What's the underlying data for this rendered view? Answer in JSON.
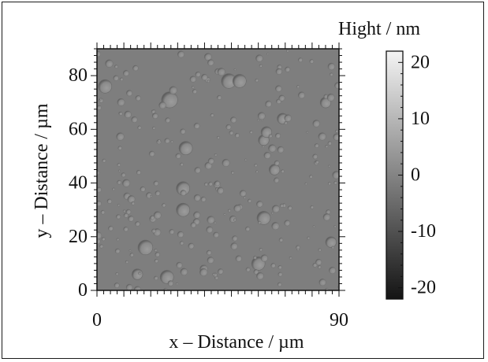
{
  "chart_data": {
    "type": "heatmap",
    "title": "",
    "xlabel": "x – Distance / µm",
    "ylabel": "y – Distance / µm",
    "xlim": [
      0,
      90
    ],
    "ylim": [
      0,
      90
    ],
    "x_ticks": [
      "0",
      "90"
    ],
    "y_ticks": [
      "0",
      "20",
      "40",
      "60",
      "80"
    ],
    "y_tick_values": [
      0,
      20,
      40,
      60,
      80
    ],
    "colorbar": {
      "label": "Hight / nm",
      "range": [
        -22,
        22
      ],
      "ticks": [
        "20",
        "10",
        "0",
        "-10",
        "-20"
      ],
      "tick_values": [
        20,
        10,
        0,
        -10,
        -20
      ],
      "colormap": "grayscale",
      "low_color": "#141414",
      "high_color": "#f4f4f4"
    },
    "surface": {
      "background_level_nm": 0,
      "background_color": "#7e7e7e",
      "feature": "round pits",
      "large_pits": [
        {
          "x": 27,
          "y": 71,
          "d": 6
        },
        {
          "x": 49,
          "y": 78,
          "d": 5.5
        },
        {
          "x": 53,
          "y": 78,
          "d": 5
        },
        {
          "x": 33,
          "y": 53,
          "d": 5
        },
        {
          "x": 32,
          "y": 38,
          "d": 5
        },
        {
          "x": 62,
          "y": 27,
          "d": 5
        },
        {
          "x": 18,
          "y": 16,
          "d": 5.5
        },
        {
          "x": 62,
          "y": 56,
          "d": 4
        },
        {
          "x": 63,
          "y": 59,
          "d": 4
        },
        {
          "x": 69,
          "y": 64,
          "d": 4
        },
        {
          "x": 85,
          "y": 70,
          "d": 4
        },
        {
          "x": 3,
          "y": 76,
          "d": 5
        },
        {
          "x": 60,
          "y": 10,
          "d": 5
        },
        {
          "x": 26,
          "y": 5,
          "d": 5
        },
        {
          "x": 32,
          "y": 30,
          "d": 5
        },
        {
          "x": 87,
          "y": 18,
          "d": 4
        },
        {
          "x": 15,
          "y": 6,
          "d": 4
        },
        {
          "x": 66,
          "y": 45,
          "d": 4
        }
      ]
    }
  }
}
